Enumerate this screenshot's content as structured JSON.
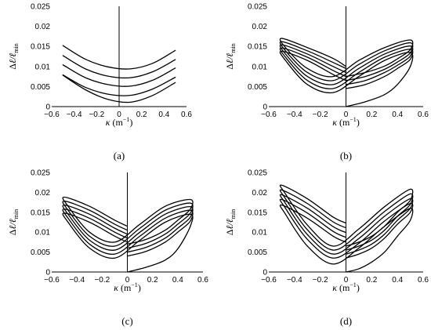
{
  "chart_data": [
    {
      "id": "a",
      "type": "line",
      "panel_label": "(a)",
      "xlim": [
        -0.6,
        0.6
      ],
      "ylim": [
        0,
        0.025
      ],
      "xticks": [
        -0.6,
        -0.4,
        -0.2,
        0,
        0.2,
        0.4,
        0.6
      ],
      "xtick_labels": [
        "−0.6",
        "−0.4",
        "−0.2",
        "0",
        "0.2",
        "0.4",
        "0.6"
      ],
      "yticks": [
        0,
        0.005,
        0.01,
        0.015,
        0.02,
        0.025
      ],
      "ytick_labels": [
        "0",
        "0.005",
        "0.01",
        "0.015",
        "0.02",
        "0.025"
      ],
      "grid": false,
      "legend": "none",
      "series": [
        {
          "x": [
            -0.5,
            -0.3,
            -0.1,
            0.1,
            0.3,
            0.5
          ],
          "y": [
            0.0152,
            0.0118,
            0.0099,
            0.0094,
            0.0108,
            0.014
          ]
        },
        {
          "x": [
            -0.5,
            -0.3,
            -0.1,
            0.1,
            0.3,
            0.5
          ],
          "y": [
            0.0127,
            0.0094,
            0.0076,
            0.0072,
            0.0087,
            0.0117
          ]
        },
        {
          "x": [
            -0.5,
            -0.3,
            -0.1,
            0.1,
            0.3,
            0.5
          ],
          "y": [
            0.0104,
            0.0072,
            0.0055,
            0.0051,
            0.0066,
            0.0096
          ]
        },
        {
          "x": [
            -0.5,
            -0.3,
            -0.1,
            0.1,
            0.3,
            0.5
          ],
          "y": [
            0.0079,
            0.0048,
            0.0031,
            0.0028,
            0.0044,
            0.0073
          ]
        },
        {
          "x": [
            -0.5,
            -0.3,
            -0.1,
            0.1,
            0.3,
            0.5
          ],
          "y": [
            0.0078,
            0.0042,
            0.0018,
            0.0011,
            0.0028,
            0.006
          ]
        }
      ]
    },
    {
      "id": "b",
      "type": "line",
      "panel_label": "(b)",
      "xlim": [
        -0.6,
        0.6
      ],
      "ylim": [
        0,
        0.025
      ],
      "xticks": [
        -0.6,
        -0.4,
        -0.2,
        0,
        0.2,
        0.4,
        0.6
      ],
      "xtick_labels": [
        "−0.6",
        "−0.4",
        "−0.2",
        "0",
        "0.2",
        "0.4",
        "0.6"
      ],
      "yticks": [
        0,
        0.005,
        0.01,
        0.015,
        0.02,
        0.025
      ],
      "ytick_labels": [
        "0",
        "0.005",
        "0.01",
        "0.015",
        "0.02",
        "0.025"
      ],
      "grid": false,
      "legend": "none",
      "series": [
        {
          "x": [
            0.0,
            0.15,
            0.3,
            0.4,
            0.5,
            0.5,
            0.3,
            0.1,
            -0.1,
            -0.3,
            -0.47,
            -0.5,
            -0.3,
            -0.1,
            0.0
          ],
          "y": [
            0.0,
            0.0012,
            0.003,
            0.0055,
            0.01,
            0.0135,
            0.0115,
            0.0075,
            0.0035,
            0.0055,
            0.0115,
            0.0138,
            0.0115,
            0.008,
            0.0065
          ]
        },
        {
          "x": [
            0.0,
            0.15,
            0.3,
            0.4,
            0.5,
            0.5,
            0.3,
            0.1,
            -0.1,
            -0.3,
            -0.47,
            -0.5,
            -0.3,
            -0.1,
            0.0
          ],
          "y": [
            0.0045,
            0.0055,
            0.0075,
            0.0095,
            0.0118,
            0.0143,
            0.0123,
            0.0085,
            0.0045,
            0.0065,
            0.0123,
            0.0146,
            0.0123,
            0.009,
            0.0075
          ]
        },
        {
          "x": [
            0.0,
            0.15,
            0.3,
            0.4,
            0.5,
            0.5,
            0.3,
            0.1,
            -0.1,
            -0.3,
            -0.47,
            -0.5,
            -0.3,
            -0.1,
            0.0
          ],
          "y": [
            0.0055,
            0.0065,
            0.0085,
            0.0103,
            0.0126,
            0.0151,
            0.0131,
            0.0095,
            0.0055,
            0.0075,
            0.0131,
            0.0154,
            0.0131,
            0.01,
            0.0085
          ]
        },
        {
          "x": [
            0.0,
            0.15,
            0.3,
            0.4,
            0.5,
            0.5,
            0.3,
            0.1,
            -0.1,
            -0.3,
            -0.47,
            -0.5,
            -0.3,
            -0.1,
            0.0
          ],
          "y": [
            0.0065,
            0.0075,
            0.0093,
            0.0111,
            0.0134,
            0.0159,
            0.0139,
            0.0105,
            0.0065,
            0.0085,
            0.0139,
            0.0162,
            0.0139,
            0.011,
            0.0095
          ]
        },
        {
          "x": [
            0.0,
            0.15,
            0.3,
            0.4,
            0.5,
            0.5,
            0.3,
            0.1,
            -0.1,
            -0.3,
            -0.47,
            -0.5,
            -0.3,
            -0.1,
            0.0
          ],
          "y": [
            0.0075,
            0.0085,
            0.0101,
            0.0119,
            0.0142,
            0.0166,
            0.0147,
            0.0115,
            0.0075,
            0.0095,
            0.0147,
            0.017,
            0.0147,
            0.012,
            0.01
          ]
        }
      ]
    },
    {
      "id": "c",
      "type": "line",
      "panel_label": "(c)",
      "xlim": [
        -0.6,
        0.6
      ],
      "ylim": [
        0,
        0.025
      ],
      "xticks": [
        -0.6,
        -0.4,
        -0.2,
        0,
        0.2,
        0.4,
        0.6
      ],
      "xtick_labels": [
        "−0.6",
        "−0.4",
        "−0.2",
        "0",
        "0.2",
        "0.4",
        "0.6"
      ],
      "yticks": [
        0,
        0.005,
        0.01,
        0.015,
        0.02,
        0.025
      ],
      "ytick_labels": [
        "0",
        "0.005",
        "0.01",
        "0.015",
        "0.02",
        "0.025"
      ],
      "grid": false,
      "legend": "none",
      "series": [
        {
          "x": [
            0.0,
            0.15,
            0.3,
            0.4,
            0.5,
            0.5,
            0.3,
            0.1,
            -0.1,
            -0.3,
            -0.47,
            -0.5,
            -0.3,
            -0.1,
            0.0
          ],
          "y": [
            0.0,
            0.0012,
            0.003,
            0.0058,
            0.0115,
            0.0145,
            0.0125,
            0.008,
            0.0035,
            0.006,
            0.0125,
            0.0148,
            0.0125,
            0.009,
            0.0075
          ]
        },
        {
          "x": [
            0.0,
            0.15,
            0.3,
            0.4,
            0.5,
            0.5,
            0.3,
            0.1,
            -0.1,
            -0.3,
            -0.47,
            -0.5,
            -0.3,
            -0.1,
            0.0
          ],
          "y": [
            0.004,
            0.0052,
            0.0075,
            0.01,
            0.0128,
            0.0155,
            0.0135,
            0.009,
            0.0045,
            0.007,
            0.0135,
            0.0158,
            0.0135,
            0.01,
            0.0085
          ]
        },
        {
          "x": [
            0.0,
            0.15,
            0.3,
            0.4,
            0.5,
            0.5,
            0.3,
            0.1,
            -0.1,
            -0.3,
            -0.47,
            -0.5,
            -0.3,
            -0.1,
            0.0
          ],
          "y": [
            0.005,
            0.0062,
            0.0085,
            0.011,
            0.0138,
            0.0164,
            0.0145,
            0.01,
            0.0055,
            0.008,
            0.0145,
            0.0168,
            0.0145,
            0.011,
            0.0095
          ]
        },
        {
          "x": [
            0.0,
            0.15,
            0.3,
            0.4,
            0.5,
            0.5,
            0.3,
            0.1,
            -0.1,
            -0.3,
            -0.47,
            -0.5,
            -0.3,
            -0.1,
            0.0
          ],
          "y": [
            0.006,
            0.0072,
            0.0095,
            0.012,
            0.0148,
            0.0173,
            0.0155,
            0.011,
            0.0065,
            0.009,
            0.0155,
            0.0178,
            0.0155,
            0.012,
            0.0105
          ]
        },
        {
          "x": [
            0.0,
            0.15,
            0.3,
            0.4,
            0.5,
            0.5,
            0.3,
            0.1,
            -0.1,
            -0.3,
            -0.47,
            -0.5,
            -0.3,
            -0.1,
            0.0
          ],
          "y": [
            0.007,
            0.0082,
            0.0105,
            0.013,
            0.0158,
            0.0182,
            0.0165,
            0.012,
            0.0075,
            0.01,
            0.0165,
            0.0188,
            0.0165,
            0.013,
            0.0115
          ]
        }
      ]
    },
    {
      "id": "d",
      "type": "line",
      "panel_label": "(d)",
      "xlim": [
        -0.6,
        0.6
      ],
      "ylim": [
        0,
        0.025
      ],
      "xticks": [
        -0.6,
        -0.4,
        -0.2,
        0,
        0.2,
        0.4,
        0.6
      ],
      "xtick_labels": [
        "−0.6",
        "−0.4",
        "−0.2",
        "0",
        "0.2",
        "0.4",
        "0.6"
      ],
      "yticks": [
        0,
        0.005,
        0.01,
        0.015,
        0.02,
        0.025
      ],
      "ytick_labels": [
        "0",
        "0.005",
        "0.01",
        "0.015",
        "0.02",
        "0.025"
      ],
      "grid": false,
      "legend": "none",
      "series": [
        {
          "x": [
            0.0,
            0.1,
            0.2,
            0.3,
            0.4,
            0.5,
            0.5,
            0.3,
            0.1,
            -0.1,
            -0.3,
            -0.47,
            -0.5,
            -0.3,
            -0.1,
            0.0
          ],
          "y": [
            0.0,
            0.0008,
            0.0025,
            0.005,
            0.009,
            0.013,
            0.016,
            0.0115,
            0.006,
            0.002,
            0.0065,
            0.0145,
            0.0168,
            0.0135,
            0.009,
            0.0075
          ]
        },
        {
          "x": [
            0.0,
            0.1,
            0.2,
            0.3,
            0.4,
            0.5,
            0.5,
            0.3,
            0.1,
            -0.1,
            -0.3,
            -0.47,
            -0.5,
            -0.3,
            -0.1,
            0.0
          ],
          "y": [
            0.0035,
            0.0045,
            0.006,
            0.0085,
            0.012,
            0.015,
            0.0172,
            0.0128,
            0.0072,
            0.0035,
            0.0082,
            0.016,
            0.0182,
            0.0148,
            0.0102,
            0.0087
          ]
        },
        {
          "x": [
            0.0,
            0.1,
            0.2,
            0.3,
            0.4,
            0.5,
            0.5,
            0.3,
            0.1,
            -0.1,
            -0.3,
            -0.47,
            -0.5,
            -0.3,
            -0.1,
            0.0
          ],
          "y": [
            0.0045,
            0.0055,
            0.007,
            0.0095,
            0.013,
            0.016,
            0.0184,
            0.014,
            0.0084,
            0.0045,
            0.0094,
            0.0172,
            0.0194,
            0.016,
            0.0114,
            0.0099
          ]
        },
        {
          "x": [
            0.0,
            0.1,
            0.2,
            0.3,
            0.4,
            0.5,
            0.5,
            0.3,
            0.1,
            -0.1,
            -0.3,
            -0.47,
            -0.5,
            -0.3,
            -0.1,
            0.0
          ],
          "y": [
            0.0055,
            0.0065,
            0.008,
            0.0105,
            0.014,
            0.017,
            0.0196,
            0.0152,
            0.0096,
            0.0055,
            0.0106,
            0.0184,
            0.0206,
            0.0172,
            0.0126,
            0.0111
          ]
        },
        {
          "x": [
            0.0,
            0.1,
            0.2,
            0.3,
            0.4,
            0.5,
            0.5,
            0.3,
            0.1,
            -0.1,
            -0.3,
            -0.47,
            -0.5,
            -0.3,
            -0.1,
            0.0
          ],
          "y": [
            0.0065,
            0.0075,
            0.009,
            0.0115,
            0.015,
            0.018,
            0.0208,
            0.0164,
            0.0108,
            0.0065,
            0.0118,
            0.0196,
            0.0218,
            0.0184,
            0.0138,
            0.0123
          ]
        }
      ]
    }
  ]
}
